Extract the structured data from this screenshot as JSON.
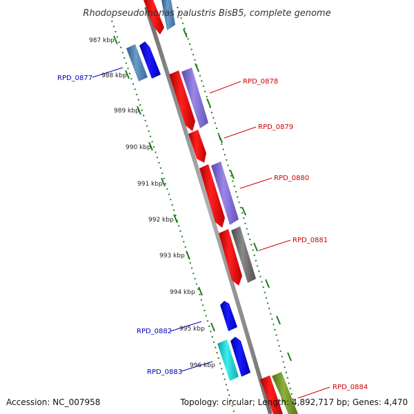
{
  "title": "Rhodopseudomonas palustris BisB5, complete genome",
  "accession": "Accession: NC_007958",
  "summary": "Topology: circular; Length: 4,892,717 bp; Genes: 4,470",
  "ticks": [
    "987 kbp",
    "988 kbp",
    "989 kbp",
    "990 kbp",
    "991 kbp",
    "992 kbp",
    "993 kbp",
    "994 kbp",
    "995 kbp",
    "996 kbp"
  ],
  "genes": [
    {
      "label": "RPD_0877",
      "color": "#0000bb"
    },
    {
      "label": "RPD_0878",
      "color": "#cc0000"
    },
    {
      "label": "RPD_0879",
      "color": "#cc0000"
    },
    {
      "label": "RPD_0880",
      "color": "#cc0000"
    },
    {
      "label": "RPD_0881",
      "color": "#cc0000"
    },
    {
      "label": "RPD_0882",
      "color": "#0000bb"
    },
    {
      "label": "RPD_0883",
      "color": "#0000bb"
    },
    {
      "label": "RPD_0884",
      "color": "#cc0000"
    }
  ],
  "colors": {
    "backbone": "#8c8c8c",
    "tick": "#1a7a1a",
    "red": "#ff1a1a",
    "blue": "#0a0aee",
    "steel": "#4f7fb0",
    "purple": "#7f6ad2",
    "gray": "#6a6a6a",
    "cyan": "#18cccc",
    "olive": "#6b8e23"
  }
}
